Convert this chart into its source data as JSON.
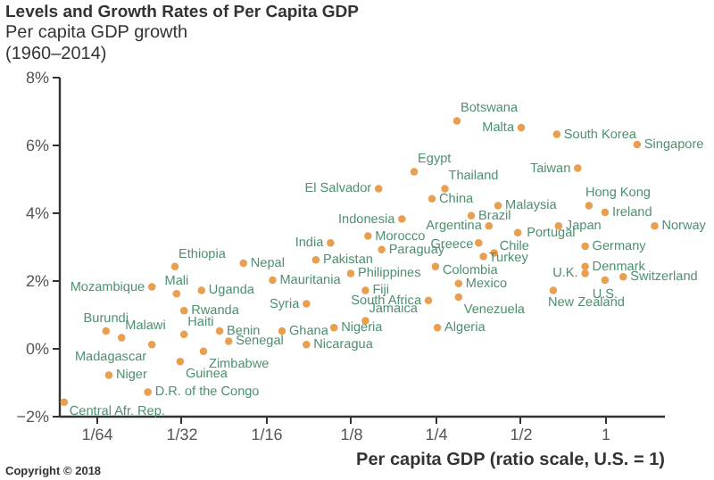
{
  "chart_data": {
    "type": "scatter",
    "title": "Levels and Growth Rates of Per Capita GDP",
    "ylabel": "Per capita GDP growth\n(1960–2014)",
    "xlabel": "Per capita GDP (ratio scale, U.S. = 1)",
    "log": "x",
    "grid": false,
    "marker": "circle",
    "xlim": [
      0.0115,
      1.62
    ],
    "ylim": [
      -2,
      8
    ],
    "xticks": [
      {
        "value": 0.015625,
        "label": "1/64"
      },
      {
        "value": 0.03125,
        "label": "1/32"
      },
      {
        "value": 0.0625,
        "label": "1/16"
      },
      {
        "value": 0.125,
        "label": "1/8"
      },
      {
        "value": 0.25,
        "label": "1/4"
      },
      {
        "value": 0.5,
        "label": "1/2"
      },
      1
    ],
    "yticks": [
      {
        "value": -2,
        "label": "−2%"
      },
      {
        "value": 0,
        "label": "0%"
      },
      {
        "value": 2,
        "label": "2%"
      },
      {
        "value": 4,
        "label": "4%"
      },
      {
        "value": 6,
        "label": "6%"
      },
      {
        "value": 8,
        "label": "8%"
      }
    ],
    "annotations": [
      "Copyright © 2018"
    ],
    "series": [
      {
        "name": "Botswana",
        "color": "#e8a050",
        "x": [
          0.298
        ],
        "values": [
          6.7
        ]
      },
      {
        "name": "Malta",
        "color": "#e8a050",
        "x": [
          0.504
        ],
        "values": [
          6.5
        ]
      },
      {
        "name": "South Korea",
        "color": "#e8a050",
        "x": [
          0.674
        ],
        "values": [
          6.3
        ]
      },
      {
        "name": "Singapore",
        "color": "#e8a050",
        "x": [
          1.3
        ],
        "values": [
          6.0
        ]
      },
      {
        "name": "Taiwan",
        "color": "#e8a050",
        "x": [
          0.8
        ],
        "values": [
          5.3
        ]
      },
      {
        "name": "Egypt",
        "color": "#e8a050",
        "x": [
          0.21
        ],
        "values": [
          5.2
        ]
      },
      {
        "name": "El Salvador",
        "color": "#e8a050",
        "x": [
          0.157
        ],
        "values": [
          4.7
        ]
      },
      {
        "name": "Thailand",
        "color": "#e8a050",
        "x": [
          0.27
        ],
        "values": [
          4.7
        ]
      },
      {
        "name": "China",
        "color": "#e8a050",
        "x": [
          0.243
        ],
        "values": [
          4.4
        ]
      },
      {
        "name": "Malaysia",
        "color": "#e8a050",
        "x": [
          0.417
        ],
        "values": [
          4.2
        ]
      },
      {
        "name": "Hong Kong",
        "color": "#e8a050",
        "x": [
          0.877
        ],
        "values": [
          4.2
        ]
      },
      {
        "name": "Ireland",
        "color": "#e8a050",
        "x": [
          1.0
        ],
        "values": [
          4.0
        ]
      },
      {
        "name": "Norway",
        "color": "#e8a050",
        "x": [
          1.5
        ],
        "values": [
          3.6
        ]
      },
      {
        "name": "Indonesia",
        "color": "#e8a050",
        "x": [
          0.19
        ],
        "values": [
          3.8
        ]
      },
      {
        "name": "Brazil",
        "color": "#e8a050",
        "x": [
          0.335
        ],
        "values": [
          3.9
        ]
      },
      {
        "name": "Argentina",
        "color": "#e8a050",
        "x": [
          0.387
        ],
        "values": [
          3.6
        ]
      },
      {
        "name": "Japan",
        "color": "#e8a050",
        "x": [
          0.684
        ],
        "values": [
          3.6
        ]
      },
      {
        "name": "Portugal",
        "color": "#e8a050",
        "x": [
          0.49
        ],
        "values": [
          3.4
        ]
      },
      {
        "name": "India",
        "color": "#e8a050",
        "x": [
          0.106
        ],
        "values": [
          3.1
        ]
      },
      {
        "name": "Morocco",
        "color": "#e8a050",
        "x": [
          0.144
        ],
        "values": [
          3.3
        ]
      },
      {
        "name": "Greece",
        "color": "#e8a050",
        "x": [
          0.356
        ],
        "values": [
          3.1
        ]
      },
      {
        "name": "Germany",
        "color": "#e8a050",
        "x": [
          0.85
        ],
        "values": [
          3.0
        ]
      },
      {
        "name": "Paraguay",
        "color": "#e8a050",
        "x": [
          0.161
        ],
        "values": [
          2.9
        ]
      },
      {
        "name": "Chile",
        "color": "#e8a050",
        "x": [
          0.404
        ],
        "values": [
          2.8
        ]
      },
      {
        "name": "Turkey",
        "color": "#e8a050",
        "x": [
          0.37
        ],
        "values": [
          2.7
        ]
      },
      {
        "name": "Pakistan",
        "color": "#e8a050",
        "x": [
          0.094
        ],
        "values": [
          2.6
        ]
      },
      {
        "name": "Ethiopia",
        "color": "#e8a050",
        "x": [
          0.0297
        ],
        "values": [
          2.4
        ]
      },
      {
        "name": "Nepal",
        "color": "#e8a050",
        "x": [
          0.052
        ],
        "values": [
          2.5
        ]
      },
      {
        "name": "Philippines",
        "color": "#e8a050",
        "x": [
          0.125
        ],
        "values": [
          2.2
        ]
      },
      {
        "name": "Colombia",
        "color": "#e8a050",
        "x": [
          0.25
        ],
        "values": [
          2.4
        ]
      },
      {
        "name": "Denmark",
        "color": "#e8a050",
        "x": [
          0.85
        ],
        "values": [
          2.4
        ]
      },
      {
        "name": "U.K.",
        "color": "#e8a050",
        "x": [
          0.85
        ],
        "values": [
          2.2
        ]
      },
      {
        "name": "U.S.",
        "color": "#e8a050",
        "x": [
          1.0
        ],
        "values": [
          2.0
        ]
      },
      {
        "name": "Switzerland",
        "color": "#e8a050",
        "x": [
          1.16
        ],
        "values": [
          2.1
        ]
      },
      {
        "name": "Mozambique",
        "color": "#e8a050",
        "x": [
          0.0246
        ],
        "values": [
          1.8
        ]
      },
      {
        "name": "Mali",
        "color": "#e8a050",
        "x": [
          0.0301
        ],
        "values": [
          1.6
        ]
      },
      {
        "name": "Uganda",
        "color": "#e8a050",
        "x": [
          0.0369
        ],
        "values": [
          1.7
        ]
      },
      {
        "name": "Mauritania",
        "color": "#e8a050",
        "x": [
          0.066
        ],
        "values": [
          2.0
        ]
      },
      {
        "name": "Fiji",
        "color": "#e8a050",
        "x": [
          0.141
        ],
        "values": [
          1.7
        ]
      },
      {
        "name": "Mexico",
        "color": "#e8a050",
        "x": [
          0.302
        ],
        "values": [
          1.9
        ]
      },
      {
        "name": "New Zealand",
        "color": "#e8a050",
        "x": [
          0.655
        ],
        "values": [
          1.7
        ]
      },
      {
        "name": "Venezuela",
        "color": "#e8a050",
        "x": [
          0.302
        ],
        "values": [
          1.5
        ]
      },
      {
        "name": "South Africa",
        "color": "#e8a050",
        "x": [
          0.236
        ],
        "values": [
          1.4
        ]
      },
      {
        "name": "Syria",
        "color": "#e8a050",
        "x": [
          0.087
        ],
        "values": [
          1.3
        ]
      },
      {
        "name": "Rwanda",
        "color": "#e8a050",
        "x": [
          0.032
        ],
        "values": [
          1.1
        ]
      },
      {
        "name": "Burundi",
        "color": "#e8a050",
        "x": [
          0.0169
        ],
        "values": [
          0.5
        ]
      },
      {
        "name": "Malawi",
        "color": "#e8a050",
        "x": [
          0.0192
        ],
        "values": [
          0.3
        ]
      },
      {
        "name": "Haiti",
        "color": "#e8a050",
        "x": [
          0.032
        ],
        "values": [
          0.4
        ]
      },
      {
        "name": "Benin",
        "color": "#e8a050",
        "x": [
          0.0428
        ],
        "values": [
          0.5
        ]
      },
      {
        "name": "Ghana",
        "color": "#e8a050",
        "x": [
          0.0713
        ],
        "values": [
          0.5
        ]
      },
      {
        "name": "Nigeria",
        "color": "#e8a050",
        "x": [
          0.109
        ],
        "values": [
          0.6
        ]
      },
      {
        "name": "Jamaica",
        "color": "#e8a050",
        "x": [
          0.141
        ],
        "values": [
          0.8
        ]
      },
      {
        "name": "Algeria",
        "color": "#e8a050",
        "x": [
          0.254
        ],
        "values": [
          0.6
        ]
      },
      {
        "name": "Madagascar",
        "color": "#e8a050",
        "x": [
          0.0246
        ],
        "values": [
          0.1
        ]
      },
      {
        "name": "Senegal",
        "color": "#e8a050",
        "x": [
          0.0461
        ],
        "values": [
          0.2
        ]
      },
      {
        "name": "Nicaragua",
        "color": "#e8a050",
        "x": [
          0.087
        ],
        "values": [
          0.1
        ]
      },
      {
        "name": "Zimbabwe",
        "color": "#e8a050",
        "x": [
          0.0375
        ],
        "values": [
          -0.1
        ]
      },
      {
        "name": "Guinea",
        "color": "#e8a050",
        "x": [
          0.031
        ],
        "values": [
          -0.4
        ]
      },
      {
        "name": "Niger",
        "color": "#e8a050",
        "x": [
          0.0173
        ],
        "values": [
          -0.8
        ]
      },
      {
        "name": "D.R. of the Congo",
        "color": "#e8a050",
        "x": [
          0.0238
        ],
        "values": [
          -1.3
        ]
      },
      {
        "name": "Central Afr. Rep.",
        "color": "#e8a050",
        "x": [
          0.012
        ],
        "values": [
          -1.6
        ]
      }
    ]
  }
}
